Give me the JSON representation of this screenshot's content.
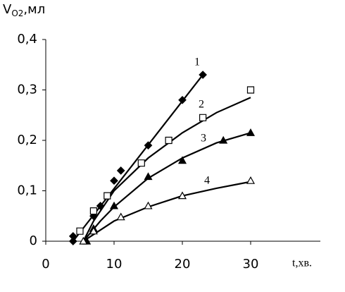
{
  "chart_data": {
    "type": "scatter",
    "y_label": "V",
    "y_label_sub": "O2",
    "y_label_unit": ",мл",
    "x_label": "t,хв.",
    "xlim": [
      0,
      40
    ],
    "ylim": [
      0,
      0.4
    ],
    "xticks": [
      0,
      10,
      20,
      30
    ],
    "yticks": [
      0,
      {
        "value": 0.1,
        "label": "0,1"
      },
      {
        "value": 0.2,
        "label": "0,2"
      },
      {
        "value": 0.3,
        "label": "0,3"
      },
      {
        "value": 0.4,
        "label": "0,4"
      }
    ],
    "series": [
      {
        "name": "1",
        "color": "#000000",
        "marker": "diamond",
        "filled": true,
        "x": [
          4,
          4,
          7,
          8,
          10,
          11,
          15,
          20,
          23
        ],
        "values": [
          0,
          0.01,
          0.05,
          0.07,
          0.12,
          0.14,
          0.19,
          0.28,
          0.33
        ],
        "fit": {
          "x": [
            4,
            23
          ],
          "values": [
            0,
            0.33
          ]
        }
      },
      {
        "name": "2",
        "color": "#000000",
        "marker": "square",
        "filled": false,
        "x": [
          5,
          7,
          9,
          14,
          18,
          23,
          30
        ],
        "values": [
          0.02,
          0.06,
          0.09,
          0.155,
          0.2,
          0.245,
          0.3
        ],
        "fit": {
          "x": [
            5.5,
            7,
            10,
            15,
            20,
            25,
            30
          ],
          "values": [
            0,
            0.04,
            0.1,
            0.165,
            0.215,
            0.255,
            0.285
          ]
        }
      },
      {
        "name": "3",
        "color": "#000000",
        "marker": "triangle",
        "filled": true,
        "x": [
          6,
          7,
          10,
          15,
          20,
          26,
          30
        ],
        "values": [
          0,
          0.025,
          0.07,
          0.128,
          0.16,
          0.2,
          0.215
        ],
        "fit": {
          "x": [
            5.5,
            8,
            10,
            15,
            20,
            25,
            30
          ],
          "values": [
            0,
            0.04,
            0.068,
            0.125,
            0.165,
            0.195,
            0.215
          ]
        }
      },
      {
        "name": "4",
        "color": "#000000",
        "marker": "triangle",
        "filled": false,
        "x": [
          5.5,
          7,
          11,
          15,
          20,
          30
        ],
        "values": [
          0,
          0.02,
          0.048,
          0.07,
          0.09,
          0.12
        ],
        "fit": {
          "x": [
            5.5,
            10,
            15,
            20,
            25,
            30
          ],
          "values": [
            0,
            0.04,
            0.068,
            0.09,
            0.105,
            0.118
          ]
        }
      }
    ]
  }
}
